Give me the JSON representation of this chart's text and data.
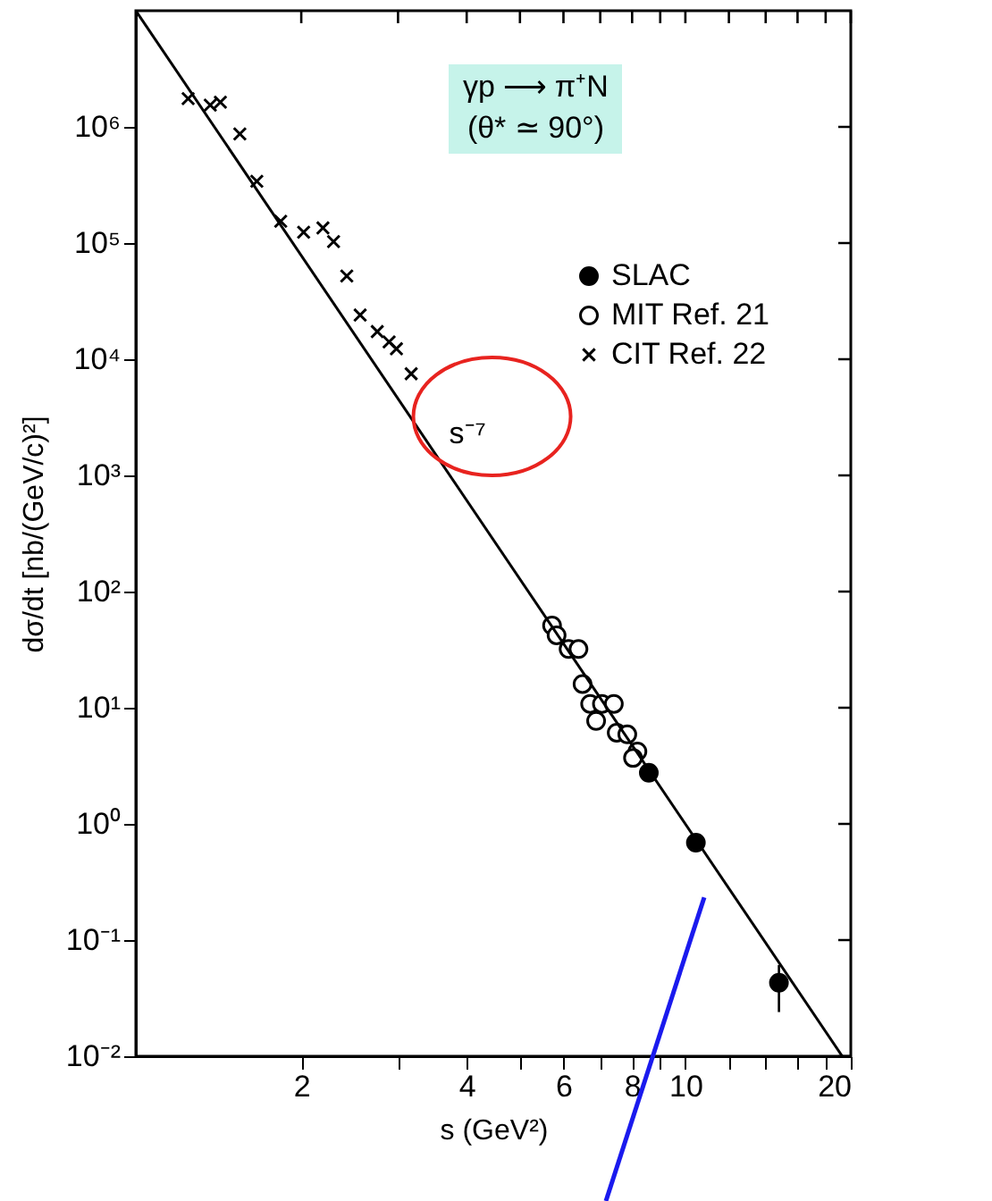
{
  "chart_data": {
    "type": "scatter",
    "xlabel": "s (GeV²)",
    "ylabel": "dσ/dt [nb/(GeV/c)²]",
    "annotations": [
      "γp ⟶ π⁺N",
      "(θ* ≃ 90°)",
      {
        "text": "s⁻⁷",
        "x": 3.5,
        "y": 1700
      }
    ],
    "log": "xy",
    "legend": "top right",
    "xlim": [
      1,
      20
    ],
    "ylim": [
      0.01,
      10000000
    ],
    "xticks": [
      2,
      {
        "value": 3,
        "label": null
      },
      4,
      {
        "value": 5,
        "label": null
      },
      6,
      {
        "value": 7,
        "label": null
      },
      8,
      {
        "value": 9,
        "label": null
      },
      10,
      {
        "value": 12,
        "label": null
      },
      {
        "value": 14,
        "label": null
      },
      {
        "value": 16,
        "label": null
      },
      {
        "value": 18,
        "label": null
      },
      20
    ],
    "yticks": [
      {
        "value": 0.01,
        "label": "10⁻²"
      },
      {
        "value": 0.1,
        "label": "10⁻¹"
      },
      {
        "value": 1,
        "label": "10⁰"
      },
      {
        "value": 10,
        "label": "10¹"
      },
      {
        "value": 100,
        "label": "10²"
      },
      {
        "value": 1000,
        "label": "10³"
      },
      {
        "value": 10000,
        "label": "10⁴"
      },
      {
        "value": 100000,
        "label": "10⁵"
      },
      {
        "value": 1000000,
        "label": "10⁶"
      }
    ],
    "series": [
      {
        "name": "SLAC",
        "marker": "circle",
        "color": "#000000",
        "x": [
          8.58,
          10.45,
          14.8
        ],
        "values": [
          2.76,
          0.69,
          0.043
        ],
        "errors": [
          null,
          null,
          [
            0.024,
            0.061
          ]
        ]
      },
      {
        "name": "MIT  Ref. 21",
        "marker": "circle",
        "color": "#ffffff",
        "x": [
          5.72,
          5.83,
          6.13,
          6.39,
          6.5,
          6.71,
          7.05,
          7.41,
          6.88,
          7.5,
          7.84,
          8.18,
          8.03
        ],
        "values": [
          51,
          42,
          32,
          32,
          16,
          10.8,
          10.8,
          10.8,
          7.7,
          6.1,
          5.9,
          4.2,
          3.7
        ]
      },
      {
        "name": "CIT  Ref. 22",
        "marker": "cross",
        "color": "#000000",
        "x": [
          1.245,
          1.366,
          1.425,
          1.546,
          1.66,
          1.835,
          2.02,
          2.19,
          2.29,
          2.42,
          2.56,
          2.75,
          2.89,
          2.98,
          3.17
        ],
        "values": [
          1750000,
          1540000,
          1630000,
          870000,
          340000,
          154000,
          124000,
          135000,
          103000,
          52000,
          24000,
          17300,
          14100,
          12300,
          7500
        ]
      },
      {
        "type": "line",
        "color": "#000000",
        "line_style": "solid",
        "x": [
          1,
          19.3
        ],
        "values": [
          10000000,
          0.01
        ]
      }
    ]
  }
}
